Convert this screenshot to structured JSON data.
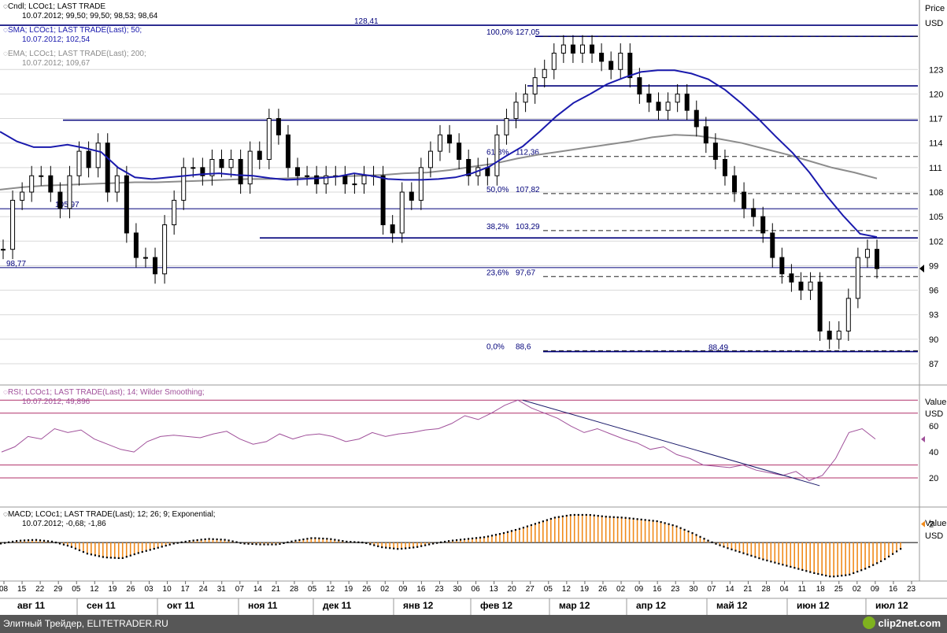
{
  "legends": {
    "candles": {
      "line1": "Cndl; LCOc1; LAST TRADE",
      "line2": "10.07.2012; 99,50; 99,50; 98,53; 98,64"
    },
    "sma": {
      "line1": "SMA; LCOc1; LAST TRADE(Last);  50;",
      "line2": "10.07.2012; 102,54"
    },
    "ema": {
      "line1": "EMA; LCOc1; LAST TRADE(Last);  200;",
      "line2": "10.07.2012; 109,67"
    },
    "rsi": {
      "line1": "RSI; LCOc1; LAST TRADE(Last);  14; Wilder Smoothing;",
      "line2": "10.07.2012; 49,896"
    },
    "macd": {
      "line1": "MACD; LCOc1; LAST TRADE(Last);  12; 26; 9; Exponential;",
      "line2": "10.07.2012; -0,68; -1,86"
    }
  },
  "axis_headers": {
    "price": {
      "title": "Price",
      "unit": "USD"
    },
    "rsi": {
      "title": "Value",
      "unit": "USD"
    },
    "macd": {
      "title": "Value",
      "unit": "USD"
    }
  },
  "colors": {
    "candle": "#000000",
    "sma": "#1a1aad",
    "ema": "#8c8c8c",
    "hline": "#00007a",
    "rsi": "#a0509a",
    "rsi_band": "#b0306a",
    "macd_pos": "#f08a1a",
    "macd_neg": "#000000"
  },
  "footer": {
    "text": "Элитный Трейдер, ELITETRADER.RU",
    "logo": "clip2net.com"
  },
  "chart_data": [
    {
      "type": "candlestick",
      "title": "Cndl; LCOc1; LAST TRADE",
      "ylabel": "Price",
      "unit": "USD",
      "ylim": [
        84.5,
        131.5
      ],
      "y_ticks": [
        87,
        90,
        93,
        96,
        99,
        102,
        105,
        108,
        111,
        114,
        117,
        120,
        123
      ],
      "last_price": 98.64,
      "x_ticks": [
        "08",
        "15",
        "22",
        "29",
        "05",
        "12",
        "19",
        "26",
        "03",
        "10",
        "17",
        "24",
        "31",
        "07",
        "14",
        "21",
        "28",
        "05",
        "12",
        "19",
        "26",
        "02",
        "09",
        "16",
        "23",
        "30",
        "06",
        "13",
        "20",
        "27",
        "05",
        "12",
        "19",
        "26",
        "02",
        "09",
        "16",
        "23",
        "30",
        "07",
        "14",
        "21",
        "28",
        "04",
        "11",
        "18",
        "25",
        "02",
        "09",
        "16",
        "23"
      ],
      "months": [
        "авг 11",
        "сен 11",
        "окт 11",
        "ноя 11",
        "дек 11",
        "янв 12",
        "фев 12",
        "мар 12",
        "апр 12",
        "май 12",
        "июн 12",
        "июл 12"
      ],
      "horizontal_levels": [
        {
          "label": "128,41",
          "value": 128.41
        },
        {
          "label": "",
          "value": 127.05
        },
        {
          "label": "",
          "value": 121.0
        },
        {
          "label": "",
          "value": 116.8
        },
        {
          "label": "105,97",
          "value": 105.97
        },
        {
          "label": "",
          "value": 102.4
        },
        {
          "label": "98,77",
          "value": 98.77
        },
        {
          "label": "88,49",
          "value": 88.49
        }
      ],
      "fibonacci": [
        {
          "label": "100,0%",
          "value_label": "127,05",
          "value": 127.05
        },
        {
          "label": "61,8%",
          "value_label": "112,36",
          "value": 112.36
        },
        {
          "label": "50,0%",
          "value_label": "107,82",
          "value": 107.82
        },
        {
          "label": "38,2%",
          "value_label": "103,29",
          "value": 103.29
        },
        {
          "label": "23,6%",
          "value_label": "97,67",
          "value": 97.67
        },
        {
          "label": "0,0%",
          "value_label": "88,6",
          "value": 88.6
        }
      ],
      "series": [
        {
          "name": "Cndl; LCOc1; LAST TRADE",
          "kind": "close",
          "values": [
            101,
            107,
            108,
            110,
            110,
            108,
            106,
            110,
            113,
            111,
            114,
            108,
            110,
            103,
            100,
            100,
            98,
            104,
            107,
            111,
            111,
            110,
            112,
            111,
            112,
            109,
            113,
            112,
            117,
            115,
            111,
            110,
            110,
            109,
            110,
            110,
            109,
            109,
            110,
            110,
            104,
            103,
            108,
            107,
            111,
            113,
            115,
            114,
            112,
            110,
            111,
            110,
            115,
            117,
            119,
            120,
            122,
            123,
            125,
            126,
            125,
            126,
            125,
            124,
            123,
            125,
            122,
            120,
            119,
            118,
            119,
            120,
            118,
            116,
            114,
            112,
            110,
            108,
            106,
            105,
            103,
            100,
            98,
            97,
            96,
            97,
            91,
            90,
            91,
            95,
            100,
            101,
            98.64
          ]
        },
        {
          "name": "SMA; LCOc1; LAST TRADE(Last);  50;",
          "kind": "line",
          "values": [
            115.4,
            114.2,
            113.5,
            113.5,
            113.8,
            113.4,
            112.9,
            111.0,
            109.8,
            109.6,
            109.8,
            110.0,
            110.2,
            110.3,
            110.1,
            110.0,
            109.7,
            109.5,
            109.6,
            109.7,
            109.9,
            110.3,
            110.0,
            109.6,
            109.5,
            109.5,
            109.6,
            109.8,
            110.3,
            111.1,
            112.4,
            113.6,
            115.4,
            117.3,
            118.9,
            120.0,
            121.2,
            122.0,
            122.7,
            122.9,
            122.9,
            122.5,
            121.8,
            120.5,
            118.8,
            116.9,
            114.8,
            112.8,
            110.4,
            107.6,
            105.1,
            102.9,
            102.5
          ]
        },
        {
          "name": "EMA; LCOc1; LAST TRADE(Last);  200;",
          "kind": "line",
          "values": [
            108.3,
            108.6,
            108.8,
            108.9,
            109.0,
            109.1,
            109.2,
            109.2,
            109.3,
            109.4,
            109.5,
            109.6,
            109.6,
            109.7,
            109.8,
            109.9,
            110.0,
            110.1,
            110.3,
            110.4,
            110.7,
            111.1,
            111.5,
            112.1,
            112.6,
            113.0,
            113.4,
            113.8,
            114.2,
            114.7,
            115.0,
            114.9,
            114.5,
            114.0,
            113.3,
            112.6,
            111.8,
            111.0,
            110.4,
            109.67
          ]
        }
      ]
    },
    {
      "type": "line",
      "title": "RSI; LCOc1; LAST TRADE(Last);  14; Wilder Smoothing;",
      "ylabel": "Value",
      "unit": "USD",
      "ylim": [
        0,
        85
      ],
      "y_ticks": [
        20,
        40,
        60
      ],
      "bands": [
        80,
        70,
        30,
        20
      ],
      "last_value": 49.896,
      "trendline": [
        {
          "x": 0.558,
          "y": 80
        },
        {
          "x": 0.875,
          "y": 14
        }
      ],
      "series": [
        {
          "name": "RSI; LCOc1; LAST TRADE(Last);  14; Wilder Smoothing;",
          "values": [
            40,
            44,
            52,
            50,
            58,
            55,
            57,
            50,
            46,
            42,
            40,
            48,
            52,
            53,
            52,
            51,
            54,
            56,
            50,
            46,
            48,
            54,
            50,
            53,
            54,
            52,
            48,
            50,
            55,
            52,
            54,
            55,
            57,
            58,
            62,
            68,
            65,
            70,
            76,
            80,
            74,
            70,
            66,
            60,
            55,
            58,
            54,
            50,
            47,
            42,
            44,
            38,
            35,
            30,
            29,
            28,
            30,
            26,
            24,
            22,
            25,
            18,
            22,
            35,
            55,
            58,
            50
          ]
        }
      ]
    },
    {
      "type": "bar",
      "title": "MACD; LCOc1; LAST TRADE(Last);  12; 26; 9; Exponential;",
      "ylabel": "Value",
      "unit": "USD",
      "ylim": [
        -4,
        3.5
      ],
      "y_ticks": [
        2
      ],
      "last_values": {
        "macd": -0.68,
        "signal": -1.86
      },
      "series": [
        {
          "name": "MACD; LCOc1; LAST TRADE(Last);  12; 26; 9; Exponential;",
          "values": [
            -0.1,
            0.2,
            0.3,
            0.1,
            -0.4,
            -1.2,
            -1.6,
            -1.7,
            -1.1,
            -0.6,
            -0.1,
            0.2,
            0.4,
            0.3,
            -0.1,
            -0.2,
            -0.2,
            0.2,
            0.5,
            0.4,
            0.1,
            0.0,
            -0.5,
            -0.7,
            -0.5,
            -0.1,
            0.2,
            0.4,
            0.6,
            1.0,
            1.5,
            2.1,
            2.7,
            3.0,
            3.0,
            2.8,
            2.7,
            2.5,
            2.3,
            1.8,
            1.0,
            0.1,
            -0.6,
            -1.2,
            -1.8,
            -2.3,
            -2.8,
            -3.3,
            -3.7,
            -3.5,
            -2.8,
            -1.9,
            -0.68
          ]
        }
      ]
    }
  ]
}
